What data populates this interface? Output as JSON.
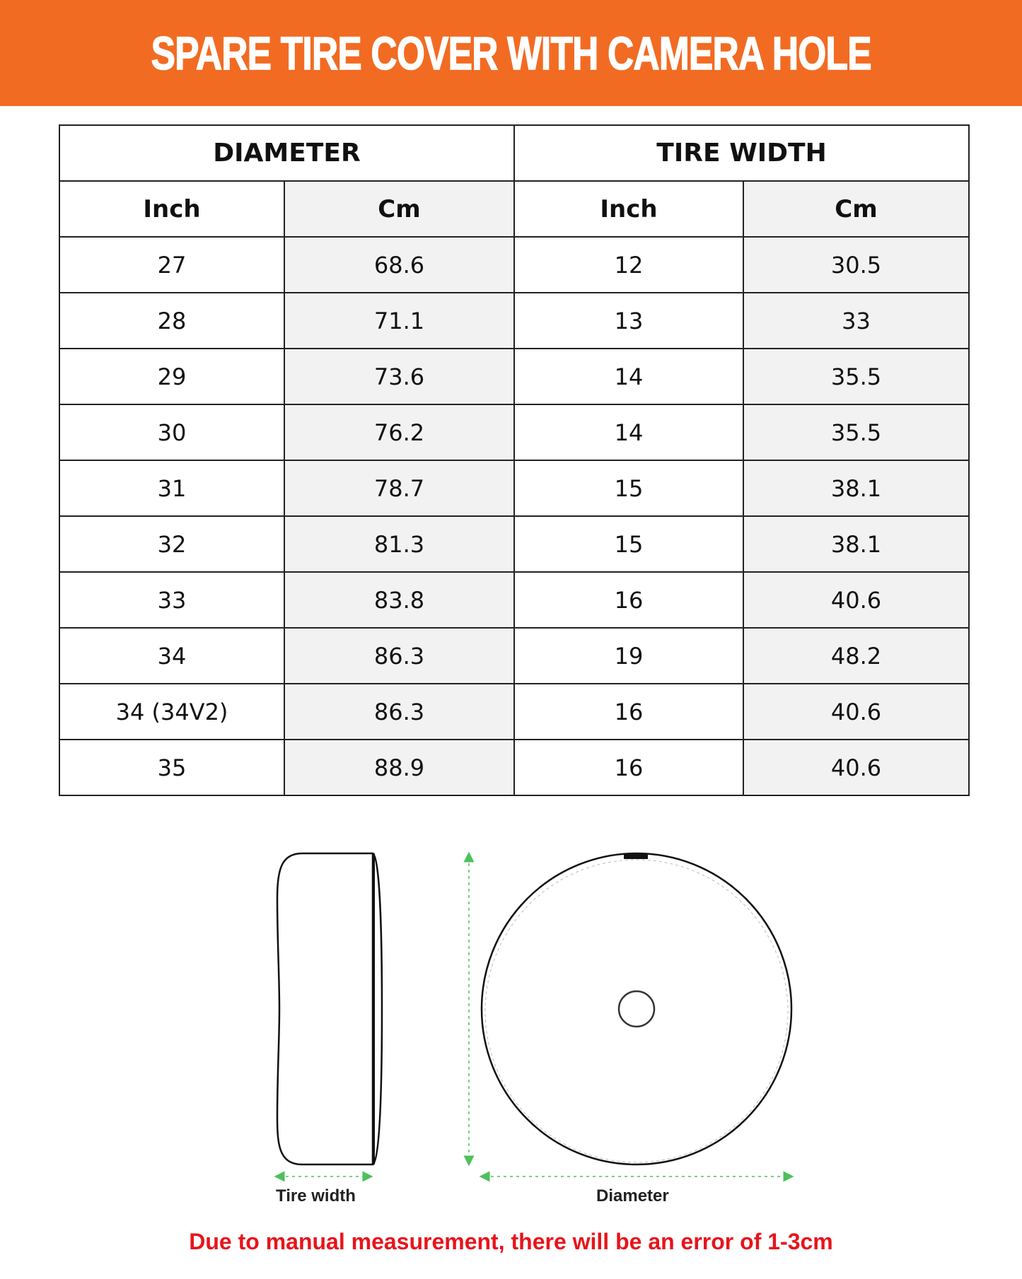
{
  "title": "SPARE TIRE COVER WITH CAMERA HOLE",
  "colors": {
    "banner": "#f26b22",
    "note": "#e8141b",
    "arrow": "#4cc15a"
  },
  "table": {
    "groups": [
      "DIAMETER",
      "TIRE WIDTH"
    ],
    "subheaders": [
      "Inch",
      "Cm",
      "Inch",
      "Cm"
    ],
    "rows": [
      [
        "27",
        "68.6",
        "12",
        "30.5"
      ],
      [
        "28",
        "71.1",
        "13",
        "33"
      ],
      [
        "29",
        "73.6",
        "14",
        "35.5"
      ],
      [
        "30",
        "76.2",
        "14",
        "35.5"
      ],
      [
        "31",
        "78.7",
        "15",
        "38.1"
      ],
      [
        "32",
        "81.3",
        "15",
        "38.1"
      ],
      [
        "33",
        "83.8",
        "16",
        "40.6"
      ],
      [
        "34",
        "86.3",
        "19",
        "48.2"
      ],
      [
        "34 (34V2)",
        "86.3",
        "16",
        "40.6"
      ],
      [
        "35",
        "88.9",
        "16",
        "40.6"
      ]
    ]
  },
  "diagram": {
    "tire_width_label": "Tire width",
    "diameter_label": "Diameter"
  },
  "note": "Due to manual measurement, there will be an error of 1-3cm"
}
